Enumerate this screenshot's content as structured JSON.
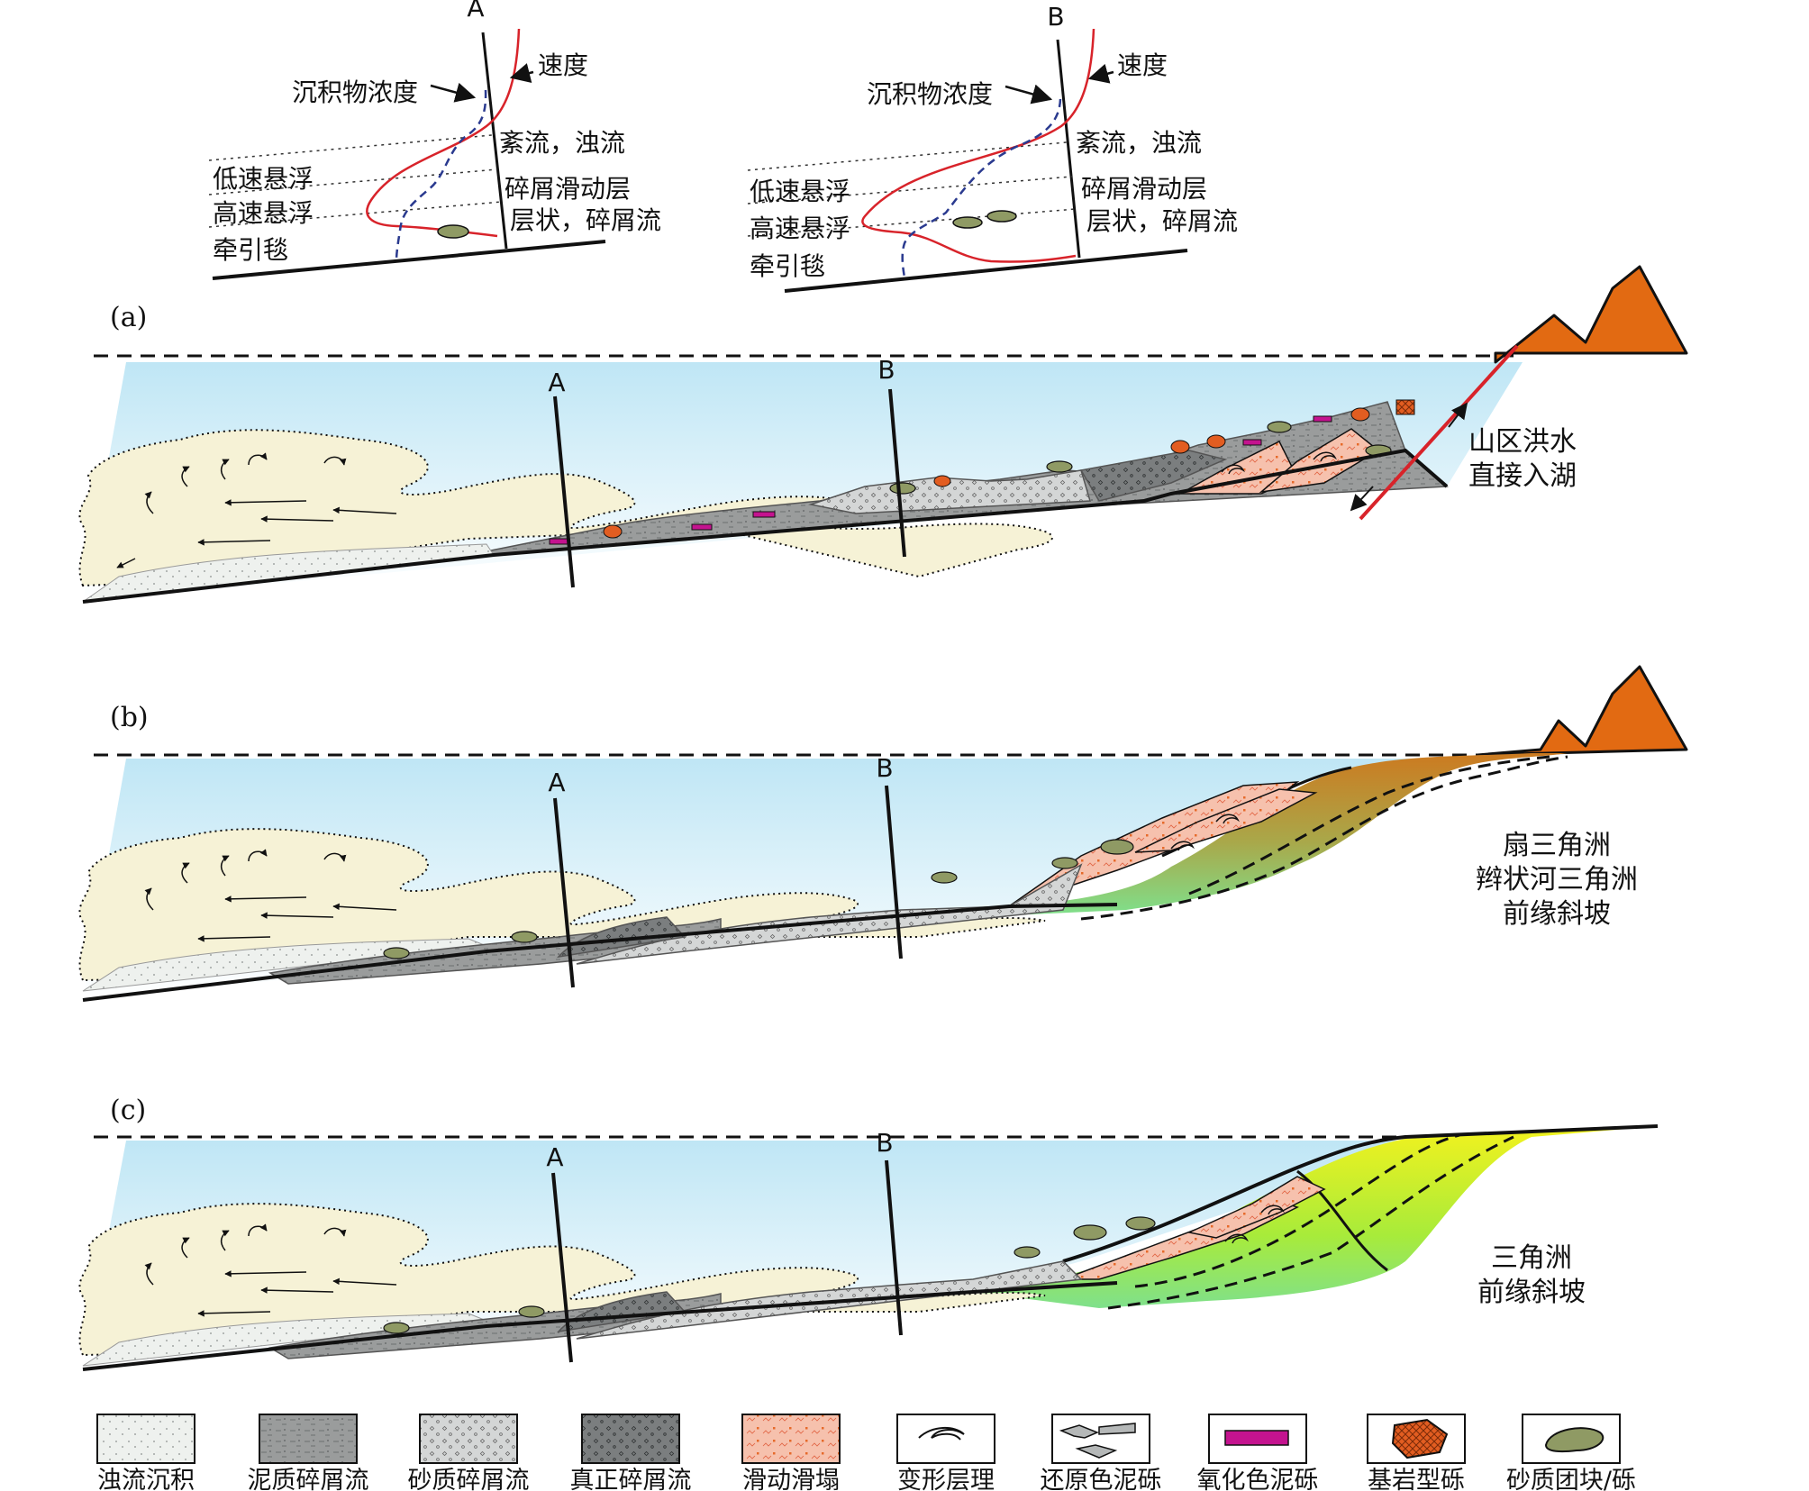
{
  "profiles": [
    {
      "id": "A",
      "section_label": "A",
      "velocity_label": "速度",
      "concentration_label": "沉积物浓度",
      "zone_labels": [
        "低速悬浮",
        "高速悬浮",
        "牵引毯"
      ],
      "flow_labels": [
        "紊流，浊流",
        "碎屑滑动层",
        "层状，碎屑流"
      ]
    },
    {
      "id": "B",
      "section_label": "B",
      "velocity_label": "速度",
      "concentration_label": "沉积物浓度",
      "zone_labels": [
        "低速悬浮",
        "高速悬浮",
        "牵引毯"
      ],
      "flow_labels": [
        "紊流，浊流",
        "碎屑滑动层",
        "层状，碎屑流"
      ]
    }
  ],
  "panels": [
    {
      "id": "a",
      "label": "(a)",
      "section_a": "A",
      "section_b": "B",
      "setting_lines": [
        "山区洪水",
        "直接入湖"
      ]
    },
    {
      "id": "b",
      "label": "(b)",
      "section_a": "A",
      "section_b": "B",
      "setting_lines": [
        "扇三角洲",
        "辫状河三角洲",
        "前缘斜坡"
      ]
    },
    {
      "id": "c",
      "label": "(c)",
      "section_a": "A",
      "section_b": "B",
      "setting_lines": [
        "三角洲",
        "前缘斜坡"
      ]
    }
  ],
  "legend": [
    {
      "label": "浊流沉积",
      "swatch": "turbidite",
      "color": "#eef1ee"
    },
    {
      "label": "泥质碎屑流",
      "swatch": "muddy-debris-flow",
      "color": "#9a9c9c"
    },
    {
      "label": "砂质碎屑流",
      "swatch": "sandy-debris-flow",
      "color": "#d4d6d6"
    },
    {
      "label": "真正碎屑流",
      "swatch": "true-debris-flow",
      "color": "#7b7e7f"
    },
    {
      "label": "滑动滑塌",
      "swatch": "slide-slump",
      "color": "#f6c1ad"
    },
    {
      "label": "变形层理",
      "swatch": "deformed-bedding",
      "color": "#ffffff"
    },
    {
      "label": "还原色泥砾",
      "swatch": "reduced-mud-clast",
      "color": "#b5b8b8"
    },
    {
      "label": "氧化色泥砾",
      "swatch": "oxidized-mud-clast",
      "color": "#c4138f"
    },
    {
      "label": "基岩型砾",
      "swatch": "bedrock-gravel",
      "color": "#e25d21"
    },
    {
      "label": "砂质团块/砾",
      "swatch": "sandy-clump",
      "color": "#8f9a64"
    }
  ],
  "colors": {
    "water": "#bfe6f5",
    "turbidity_cloud": "#f6f2d6",
    "mountain": "#e26a12",
    "velocity_curve": "#d8232a",
    "concentration_curve": "#2a3a8f",
    "fan_delta_top": "#cc7a20",
    "fan_delta_bottom": "#7fe08c",
    "delta_top": "#f3f21e",
    "delta_bottom": "#7fe08c"
  }
}
